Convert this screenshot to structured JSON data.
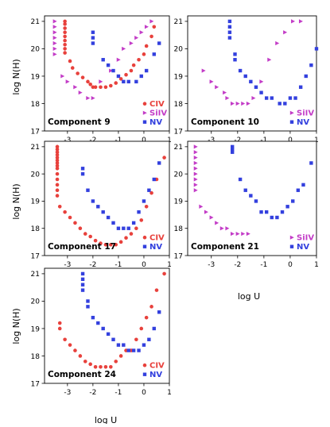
{
  "x_axis_label": "log U",
  "y_axis_label": "log N(H)",
  "colors": {
    "CIV": "#e8413c",
    "SiIV": "#c33cc7",
    "NV": "#3340de"
  },
  "chart_data": [
    {
      "type": "scatter",
      "title": "Component 9",
      "xlabel": "",
      "ylabel": "log N(H)",
      "xlim": [
        -3.9,
        1
      ],
      "ylim": [
        17,
        21.2
      ],
      "xticks": [
        -3,
        -2,
        -1,
        0,
        1
      ],
      "yticks": [
        17,
        18,
        19,
        20,
        21
      ],
      "legend": [
        "CIV",
        "SiIV",
        "NV"
      ],
      "legend_position": "bottom-right",
      "series": [
        {
          "name": "CIV",
          "marker": "circle",
          "x": [
            -3.1,
            -3.1,
            -3.1,
            -3.1,
            -3.1,
            -3.1,
            -3.1,
            -3.1,
            -3.1,
            -2.9,
            -2.8,
            -2.6,
            -2.4,
            -2.2,
            -2.1,
            -2.0,
            -1.9,
            -1.7,
            -1.5,
            -1.3,
            -1.1,
            -0.9,
            -0.7,
            -0.5,
            -0.4,
            -0.2,
            0.0,
            0.1,
            0.3,
            0.4
          ],
          "y": [
            21.0,
            20.9,
            20.75,
            20.6,
            20.45,
            20.3,
            20.15,
            20.0,
            19.85,
            19.55,
            19.3,
            19.1,
            18.95,
            18.8,
            18.7,
            18.6,
            18.6,
            18.6,
            18.6,
            18.65,
            18.75,
            18.9,
            19.05,
            19.2,
            19.4,
            19.6,
            19.8,
            20.1,
            20.45,
            20.8
          ]
        },
        {
          "name": "SiIV",
          "marker": "triangle",
          "x": [
            -3.5,
            -3.5,
            -3.5,
            -3.5,
            -3.5,
            -3.5,
            -3.5,
            -3.2,
            -3.0,
            -2.7,
            -2.5,
            -2.2,
            -2.0,
            -1.7,
            -1.3,
            -1.0,
            -0.8,
            -0.5,
            -0.3,
            -0.1,
            0.1,
            0.3
          ],
          "y": [
            21.0,
            20.8,
            20.6,
            20.4,
            20.2,
            20.0,
            19.8,
            19.0,
            18.8,
            18.6,
            18.4,
            18.2,
            18.2,
            18.8,
            19.2,
            19.6,
            20.0,
            20.2,
            20.4,
            20.6,
            20.8,
            21.0
          ]
        },
        {
          "name": "NV",
          "marker": "square",
          "x": [
            -2.0,
            -2.0,
            -2.0,
            -1.6,
            -1.4,
            -1.2,
            -1.0,
            -0.8,
            -0.6,
            -0.3,
            -0.1,
            0.1,
            0.4,
            0.6
          ],
          "y": [
            20.6,
            20.4,
            20.2,
            19.6,
            19.4,
            19.2,
            19.0,
            18.8,
            18.8,
            18.8,
            19.0,
            19.2,
            19.8,
            20.2
          ]
        }
      ]
    },
    {
      "type": "scatter",
      "title": "Component 10",
      "xlabel": "",
      "ylabel": "",
      "xlim": [
        -3.9,
        1
      ],
      "ylim": [
        17,
        21.2
      ],
      "xticks": [
        -3,
        -2,
        -1,
        0,
        1
      ],
      "yticks": [
        17,
        18,
        19,
        20,
        21
      ],
      "legend": [
        "SiIV",
        "NV"
      ],
      "legend_position": "bottom-right",
      "series": [
        {
          "name": "SiIV",
          "marker": "triangle",
          "x": [
            -3.3,
            -3.0,
            -2.8,
            -2.5,
            -2.4,
            -2.2,
            -2.0,
            -1.8,
            -1.6,
            -1.4,
            -1.1,
            -0.8,
            -0.5,
            -0.2,
            0.1,
            0.4
          ],
          "y": [
            19.2,
            18.8,
            18.6,
            18.4,
            18.2,
            18.0,
            18.0,
            18.0,
            18.0,
            18.2,
            18.8,
            19.6,
            20.2,
            20.6,
            21.0,
            21.0
          ]
        },
        {
          "name": "NV",
          "marker": "square",
          "x": [
            -2.3,
            -2.3,
            -2.3,
            -2.3,
            -2.1,
            -2.1,
            -1.9,
            -1.7,
            -1.5,
            -1.3,
            -1.1,
            -0.9,
            -0.7,
            -0.4,
            -0.2,
            0.0,
            0.2,
            0.4,
            0.6,
            0.8,
            1.0
          ],
          "y": [
            21.0,
            20.8,
            20.6,
            20.4,
            19.8,
            19.6,
            19.2,
            19.0,
            18.8,
            18.6,
            18.4,
            18.2,
            18.2,
            18.0,
            18.0,
            18.2,
            18.2,
            18.6,
            19.0,
            19.4,
            20.0
          ]
        }
      ]
    },
    {
      "type": "scatter",
      "title": "Component 17",
      "xlabel": "",
      "ylabel": "log N(H)",
      "xlim": [
        -3.9,
        1
      ],
      "ylim": [
        17,
        21.2
      ],
      "xticks": [
        -3,
        -2,
        -1,
        0,
        1
      ],
      "yticks": [
        17,
        18,
        19,
        20,
        21
      ],
      "legend": [
        "CIV",
        "NV"
      ],
      "legend_position": "bottom-right",
      "series": [
        {
          "name": "CIV",
          "marker": "circle",
          "x": [
            -3.4,
            -3.4,
            -3.4,
            -3.4,
            -3.4,
            -3.4,
            -3.4,
            -3.4,
            -3.4,
            -3.4,
            -3.4,
            -3.4,
            -3.4,
            -3.4,
            -3.3,
            -3.1,
            -2.9,
            -2.7,
            -2.5,
            -2.3,
            -2.1,
            -1.9,
            -1.7,
            -1.5,
            -1.3,
            -1.1,
            -0.9,
            -0.7,
            -0.5,
            -0.3,
            -0.1,
            0.1,
            0.3,
            0.5,
            0.8
          ],
          "y": [
            21.0,
            20.9,
            20.8,
            20.7,
            20.6,
            20.5,
            20.4,
            20.3,
            20.2,
            20.0,
            19.8,
            19.6,
            19.4,
            19.2,
            18.8,
            18.6,
            18.4,
            18.2,
            18.0,
            17.8,
            17.7,
            17.55,
            17.45,
            17.4,
            17.4,
            17.4,
            17.5,
            17.65,
            17.8,
            18.0,
            18.3,
            18.8,
            19.3,
            19.8,
            20.6
          ]
        },
        {
          "name": "NV",
          "marker": "square",
          "x": [
            -2.4,
            -2.4,
            -2.2,
            -2.0,
            -1.8,
            -1.6,
            -1.4,
            -1.2,
            -1.0,
            -0.8,
            -0.6,
            -0.4,
            -0.2,
            0.0,
            0.2,
            0.4,
            0.6
          ],
          "y": [
            20.2,
            20.0,
            19.4,
            19.0,
            18.8,
            18.6,
            18.4,
            18.2,
            18.0,
            18.0,
            18.0,
            18.2,
            18.6,
            19.0,
            19.4,
            19.8,
            20.4
          ]
        }
      ]
    },
    {
      "type": "scatter",
      "title": "Component 21",
      "xlabel": "log U",
      "ylabel": "",
      "xlim": [
        -3.9,
        1
      ],
      "ylim": [
        17,
        21.2
      ],
      "xticks": [
        -3,
        -2,
        -1,
        0,
        1
      ],
      "yticks": [
        17,
        18,
        19,
        20,
        21
      ],
      "legend": [
        "SiIV",
        "NV"
      ],
      "legend_position": "bottom-right",
      "series": [
        {
          "name": "SiIV",
          "marker": "triangle",
          "x": [
            -3.6,
            -3.6,
            -3.6,
            -3.6,
            -3.6,
            -3.6,
            -3.6,
            -3.6,
            -3.6,
            -3.4,
            -3.2,
            -3.0,
            -2.8,
            -2.6,
            -2.4,
            -2.2,
            -2.0,
            -1.8,
            -1.6
          ],
          "y": [
            21.0,
            20.8,
            20.6,
            20.4,
            20.2,
            20.0,
            19.8,
            19.6,
            19.4,
            18.8,
            18.6,
            18.4,
            18.2,
            18.0,
            18.0,
            17.8,
            17.8,
            17.8,
            17.8
          ]
        },
        {
          "name": "NV",
          "marker": "square",
          "x": [
            -2.2,
            -2.2,
            -2.2,
            -1.9,
            -1.7,
            -1.5,
            -1.3,
            -1.1,
            -0.9,
            -0.7,
            -0.5,
            -0.3,
            -0.1,
            0.1,
            0.3,
            0.5,
            0.8
          ],
          "y": [
            21.0,
            20.9,
            20.8,
            19.8,
            19.4,
            19.2,
            19.0,
            18.6,
            18.6,
            18.4,
            18.4,
            18.6,
            18.8,
            19.0,
            19.4,
            19.6,
            20.4
          ]
        }
      ]
    },
    {
      "type": "scatter",
      "title": "Component 24",
      "xlabel": "log U",
      "ylabel": "log N(H)",
      "xlim": [
        -3.9,
        1
      ],
      "ylim": [
        17,
        21.2
      ],
      "xticks": [
        -3,
        -2,
        -1,
        0,
        1
      ],
      "yticks": [
        17,
        18,
        19,
        20,
        21
      ],
      "legend": [
        "CIV",
        "NV"
      ],
      "legend_position": "bottom-right",
      "series": [
        {
          "name": "CIV",
          "marker": "circle",
          "x": [
            -3.3,
            -3.3,
            -3.1,
            -2.9,
            -2.7,
            -2.5,
            -2.3,
            -2.1,
            -1.9,
            -1.7,
            -1.5,
            -1.3,
            -1.1,
            -0.9,
            -0.7,
            -0.5,
            -0.3,
            -0.1,
            0.1,
            0.3,
            0.5,
            0.8
          ],
          "y": [
            19.2,
            19.0,
            18.6,
            18.4,
            18.2,
            18.0,
            17.8,
            17.7,
            17.6,
            17.6,
            17.6,
            17.6,
            17.8,
            18.0,
            18.2,
            18.2,
            18.6,
            19.0,
            19.4,
            19.8,
            20.4,
            21.0
          ]
        },
        {
          "name": "NV",
          "marker": "square",
          "x": [
            -2.4,
            -2.4,
            -2.4,
            -2.4,
            -2.2,
            -2.2,
            -2.0,
            -1.8,
            -1.6,
            -1.4,
            -1.2,
            -1.0,
            -0.8,
            -0.6,
            -0.4,
            -0.2,
            0.0,
            0.2,
            0.4,
            0.6
          ],
          "y": [
            21.0,
            20.8,
            20.6,
            20.4,
            20.0,
            19.8,
            19.4,
            19.2,
            19.0,
            18.8,
            18.6,
            18.4,
            18.4,
            18.2,
            18.2,
            18.2,
            18.4,
            18.6,
            19.0,
            19.6
          ]
        }
      ]
    }
  ]
}
